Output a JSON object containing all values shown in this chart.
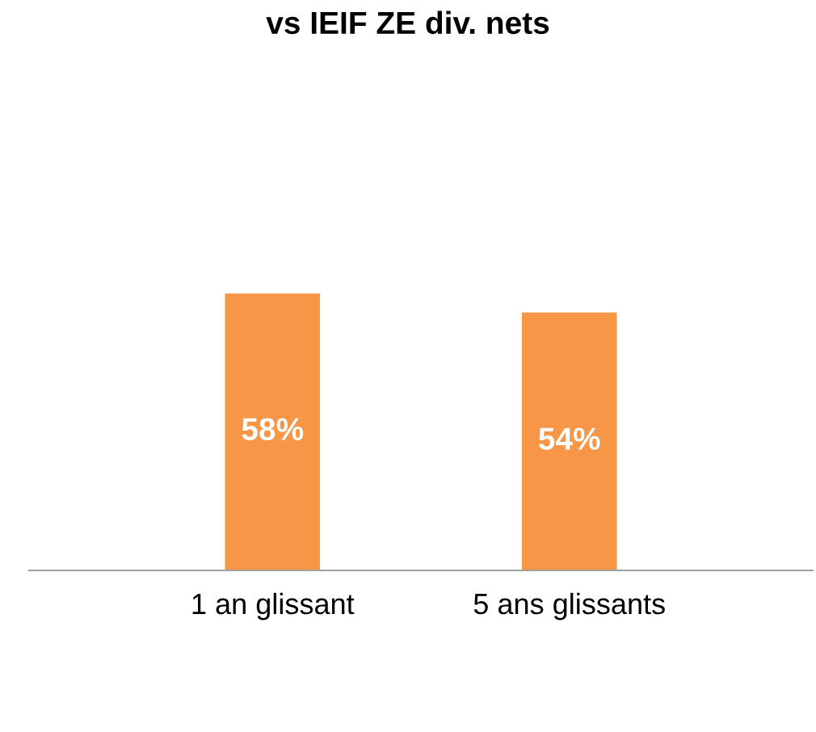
{
  "chart_data": {
    "type": "bar",
    "title": "vs IEIF ZE div. nets",
    "categories": [
      "1 an glissant",
      "5 ans glissants"
    ],
    "values": [
      58,
      54
    ],
    "value_labels": [
      "58%",
      "54%"
    ],
    "color": "#f79646"
  }
}
